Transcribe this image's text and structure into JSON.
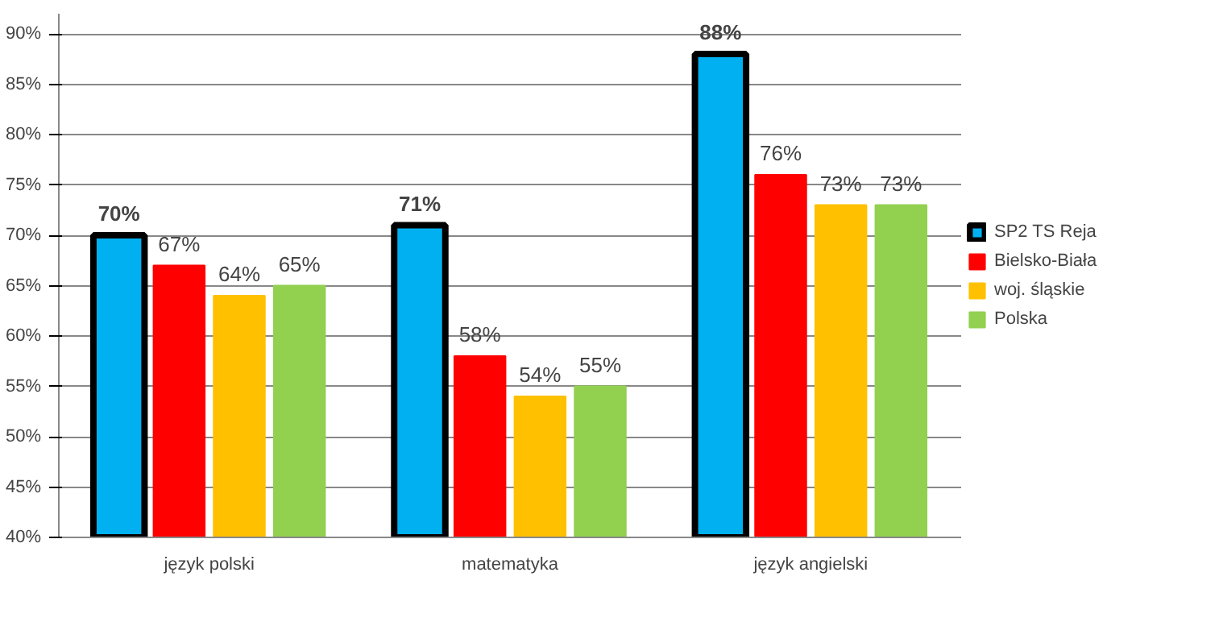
{
  "chart_data": {
    "type": "bar",
    "categories": [
      "język polski",
      "matematyka",
      "język angielski"
    ],
    "series": [
      {
        "name": "SP2 TS Reja",
        "color": "#00b0f0",
        "values": [
          70,
          71,
          88
        ],
        "value_labels": [
          "70%",
          "71%",
          "88%"
        ]
      },
      {
        "name": "Bielsko-Biała",
        "color": "#ff0000",
        "values": [
          67,
          58,
          76
        ],
        "value_labels": [
          "67%",
          "58%",
          "76%"
        ]
      },
      {
        "name": "woj. śląskie",
        "color": "#ffc000",
        "values": [
          64,
          54,
          73
        ],
        "value_labels": [
          "64%",
          "54%",
          "73%"
        ]
      },
      {
        "name": "Polska",
        "color": "#92d050",
        "values": [
          65,
          55,
          73
        ],
        "value_labels": [
          "65%",
          "55%",
          "73%"
        ]
      }
    ],
    "ylim": [
      40,
      92
    ],
    "yticks": [
      {
        "value": 40,
        "label": "40%"
      },
      {
        "value": 45,
        "label": "45%"
      },
      {
        "value": 50,
        "label": "50%"
      },
      {
        "value": 55,
        "label": "55%"
      },
      {
        "value": 60,
        "label": "60%"
      },
      {
        "value": 65,
        "label": "65%"
      },
      {
        "value": 70,
        "label": "70%"
      },
      {
        "value": 75,
        "label": "75%"
      },
      {
        "value": 80,
        "label": "80%"
      },
      {
        "value": 85,
        "label": "85%"
      },
      {
        "value": 90,
        "label": "90%"
      }
    ],
    "grid": "y",
    "legend": "right"
  }
}
